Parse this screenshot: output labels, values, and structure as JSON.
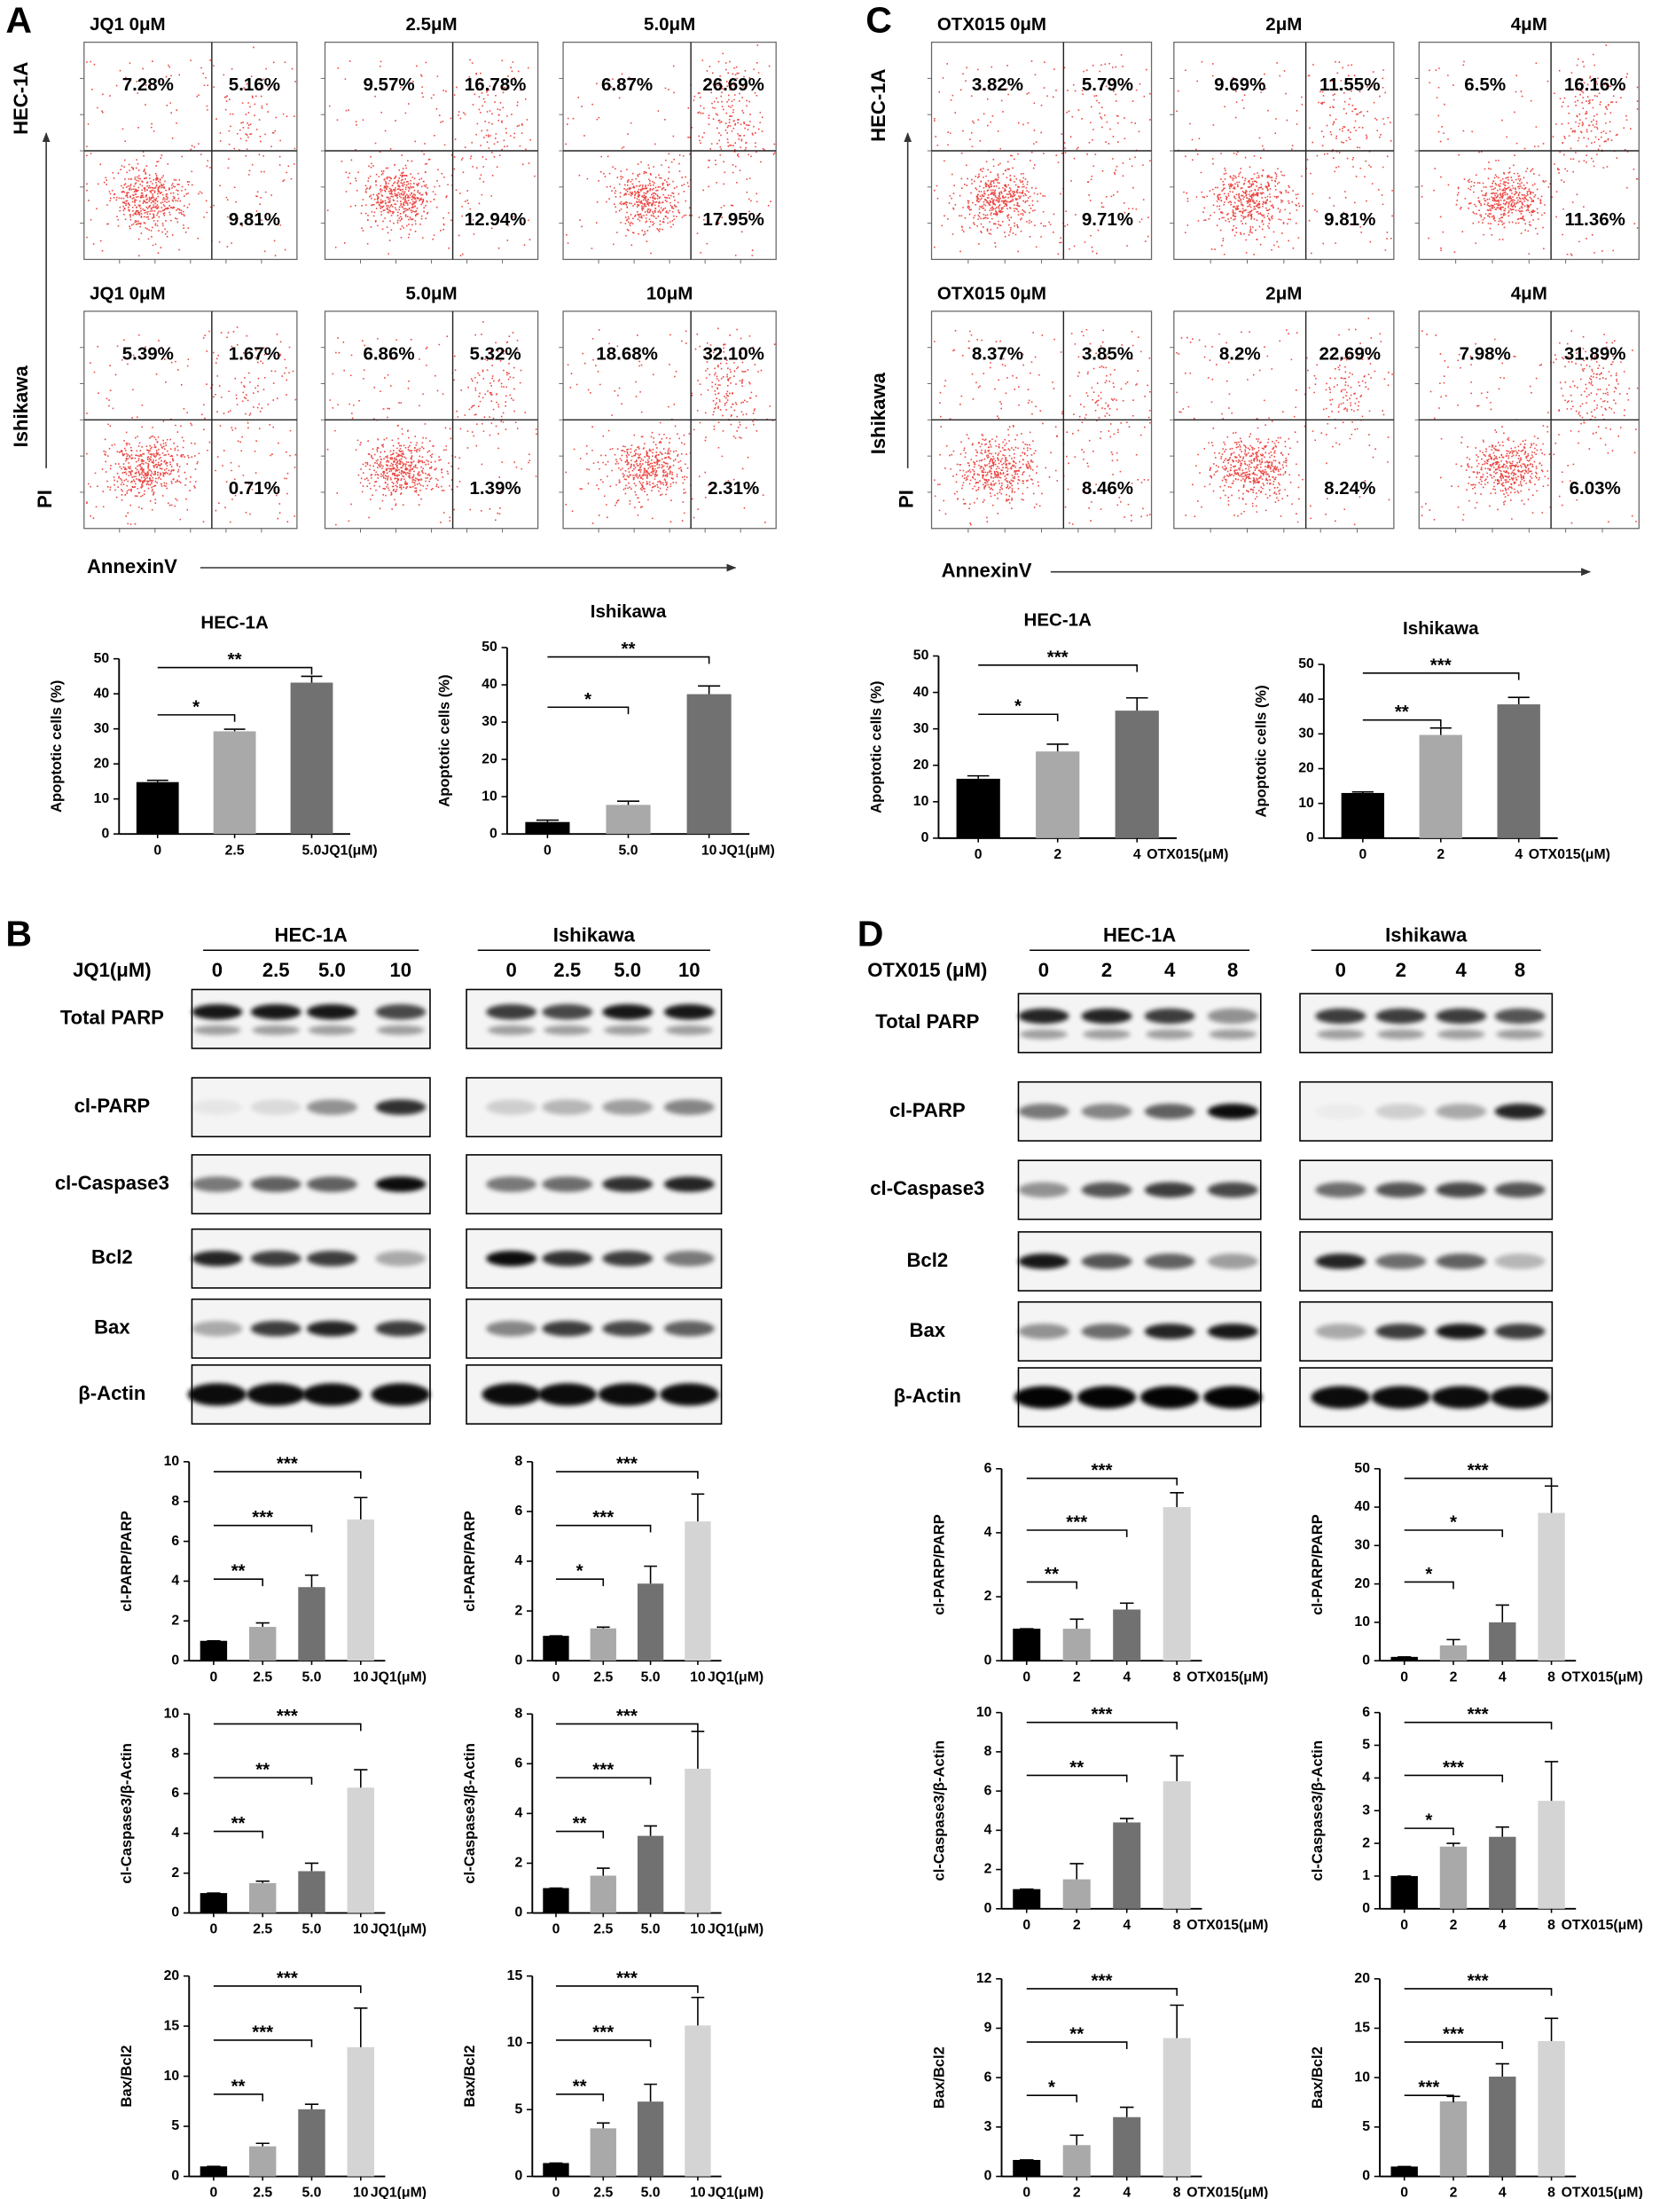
{
  "panel_labels": [
    "A",
    "B",
    "C",
    "D"
  ],
  "flow": [
    {
      "row_labels": [
        "HEC-1A",
        "Ishikawa"
      ],
      "y_label": "PI",
      "x_label": "AnnexinV",
      "plots": [
        [
          {
            "title": "JQ1 0μM",
            "quadrants": [
              "7.28%",
              "5.16%",
              "9.81%"
            ]
          },
          {
            "title": "2.5μM",
            "quadrants": [
              "9.57%",
              "16.78%",
              "12.94%"
            ]
          },
          {
            "title": "5.0μM",
            "quadrants": [
              "6.87%",
              "26.69%",
              "17.95%"
            ]
          }
        ],
        [
          {
            "title": "JQ1 0μM",
            "quadrants": [
              "5.39%",
              "1.67%",
              "0.71%"
            ]
          },
          {
            "title": "5.0μM",
            "quadrants": [
              "6.86%",
              "5.32%",
              "1.39%"
            ]
          },
          {
            "title": "10μM",
            "quadrants": [
              "18.68%",
              "32.10%",
              "2.31%"
            ]
          }
        ]
      ]
    },
    {
      "row_labels": [
        "HEC-1A",
        "Ishikawa"
      ],
      "y_label": "PI",
      "x_label": "AnnexinV",
      "plots": [
        [
          {
            "title": "OTX015 0μM",
            "quadrants": [
              "3.82%",
              "5.79%",
              "9.71%"
            ]
          },
          {
            "title": "2μM",
            "quadrants": [
              "9.69%",
              "11.55%",
              "9.81%"
            ]
          },
          {
            "title": "4μM",
            "quadrants": [
              "6.5%",
              "16.16%",
              "11.36%"
            ]
          }
        ],
        [
          {
            "title": "OTX015 0μM",
            "quadrants": [
              "8.37%",
              "3.85%",
              "8.46%"
            ]
          },
          {
            "title": "2μM",
            "quadrants": [
              "8.2%",
              "22.69%",
              "8.24%"
            ]
          },
          {
            "title": "4μM",
            "quadrants": [
              "7.98%",
              "31.89%",
              "6.03%"
            ]
          }
        ]
      ]
    }
  ],
  "chart_data": [
    {
      "type": "bar",
      "title": "HEC-1A",
      "ylabel": "Apoptotic cells (%)",
      "xlabel": "JQ1(μM)",
      "categories": [
        "0",
        "2.5",
        "5.0"
      ],
      "values": [
        14.8,
        29.3,
        43.2
      ],
      "errors": [
        0.5,
        0.6,
        1.8
      ],
      "colors": [
        "#000000",
        "#a9a9a9",
        "#717171"
      ],
      "ylim": [
        0,
        50
      ],
      "yticks": [
        0,
        10,
        20,
        30,
        40,
        50
      ],
      "annotations": [
        {
          "from": 0,
          "to": 1,
          "label": "*"
        },
        {
          "from": 0,
          "to": 2,
          "label": "**"
        }
      ]
    },
    {
      "type": "bar",
      "title": "Ishikawa",
      "ylabel": "Apoptotic cells (%)",
      "xlabel": "JQ1(μM)",
      "categories": [
        "0",
        "5.0",
        "10"
      ],
      "values": [
        3.2,
        7.8,
        37.5
      ],
      "errors": [
        0.5,
        1,
        2.2
      ],
      "colors": [
        "#000000",
        "#a9a9a9",
        "#717171"
      ],
      "ylim": [
        0,
        50
      ],
      "yticks": [
        0,
        10,
        20,
        30,
        40,
        50
      ],
      "annotations": [
        {
          "from": 0,
          "to": 1,
          "label": "*"
        },
        {
          "from": 0,
          "to": 2,
          "label": "**"
        }
      ]
    },
    {
      "type": "bar",
      "title": "HEC-1A",
      "ylabel": "Apoptotic cells (%)",
      "xlabel": "OTX015(μM)",
      "categories": [
        "0",
        "2",
        "4"
      ],
      "values": [
        16.3,
        23.8,
        35
      ],
      "errors": [
        0.8,
        2,
        3.5
      ],
      "colors": [
        "#000000",
        "#a9a9a9",
        "#717171"
      ],
      "ylim": [
        0,
        50
      ],
      "yticks": [
        0,
        10,
        20,
        30,
        40,
        50
      ],
      "annotations": [
        {
          "from": 0,
          "to": 1,
          "label": "*"
        },
        {
          "from": 0,
          "to": 2,
          "label": "***"
        }
      ]
    },
    {
      "type": "bar",
      "title": "Ishikawa",
      "ylabel": "Apoptotic cells (%)",
      "xlabel": "OTX015(μM)",
      "categories": [
        "0",
        "2",
        "4"
      ],
      "values": [
        13,
        29.7,
        38.5
      ],
      "errors": [
        0.3,
        2,
        2
      ],
      "colors": [
        "#000000",
        "#a9a9a9",
        "#717171"
      ],
      "ylim": [
        0,
        50
      ],
      "yticks": [
        0,
        10,
        20,
        30,
        40,
        50
      ],
      "annotations": [
        {
          "from": 0,
          "to": 1,
          "label": "**"
        },
        {
          "from": 0,
          "to": 2,
          "label": "***"
        }
      ]
    },
    {
      "type": "bar",
      "ylabel": "cl-PARP/PARP",
      "xlabel": "JQ1(μM)",
      "categories": [
        "0",
        "2.5",
        "5.0",
        "10"
      ],
      "values": [
        1,
        1.7,
        3.7,
        7.1
      ],
      "errors": [
        0,
        0.2,
        0.6,
        1.1
      ],
      "colors": [
        "#000000",
        "#a9a9a9",
        "#717171",
        "#d4d4d4"
      ],
      "ylim": [
        0,
        10
      ],
      "yticks": [
        0,
        2,
        4,
        6,
        8,
        10
      ],
      "annotations": [
        {
          "from": 0,
          "to": 1,
          "label": "**"
        },
        {
          "from": 0,
          "to": 2,
          "label": "***"
        },
        {
          "from": 0,
          "to": 3,
          "label": "***"
        }
      ]
    },
    {
      "type": "bar",
      "ylabel": "cl-PARP/PARP",
      "xlabel": "JQ1(μM)",
      "categories": [
        "0",
        "2.5",
        "5.0",
        "10"
      ],
      "values": [
        1,
        1.3,
        3.1,
        5.6
      ],
      "errors": [
        0,
        0.05,
        0.7,
        1.1
      ],
      "colors": [
        "#000000",
        "#a9a9a9",
        "#717171",
        "#d4d4d4"
      ],
      "ylim": [
        0,
        8
      ],
      "yticks": [
        0,
        2,
        4,
        6,
        8
      ],
      "annotations": [
        {
          "from": 0,
          "to": 1,
          "label": "*"
        },
        {
          "from": 0,
          "to": 2,
          "label": "***"
        },
        {
          "from": 0,
          "to": 3,
          "label": "***"
        }
      ]
    },
    {
      "type": "bar",
      "ylabel": "cl-PARP/PARP",
      "xlabel": "OTX015(μM)",
      "categories": [
        "0",
        "2",
        "4",
        "8"
      ],
      "values": [
        1,
        1,
        1.6,
        4.8
      ],
      "errors": [
        0,
        0.3,
        0.2,
        0.45
      ],
      "colors": [
        "#000000",
        "#a9a9a9",
        "#717171",
        "#d4d4d4"
      ],
      "ylim": [
        0,
        6
      ],
      "yticks": [
        0,
        2,
        4,
        6
      ],
      "annotations": [
        {
          "from": 0,
          "to": 1,
          "label": "**"
        },
        {
          "from": 0,
          "to": 2,
          "label": "***"
        },
        {
          "from": 0,
          "to": 3,
          "label": "***"
        }
      ]
    },
    {
      "type": "bar",
      "ylabel": "cl-PARP/PARP",
      "xlabel": "OTX015(μM)",
      "categories": [
        "0",
        "2",
        "4",
        "8"
      ],
      "values": [
        1,
        4,
        10,
        38.5
      ],
      "errors": [
        0,
        1.5,
        4.5,
        7
      ],
      "colors": [
        "#000000",
        "#a9a9a9",
        "#717171",
        "#d4d4d4"
      ],
      "ylim": [
        0,
        50
      ],
      "yticks": [
        0,
        10,
        20,
        30,
        40,
        50
      ],
      "annotations": [
        {
          "from": 0,
          "to": 1,
          "label": "*"
        },
        {
          "from": 0,
          "to": 2,
          "label": "*"
        },
        {
          "from": 0,
          "to": 3,
          "label": "***"
        }
      ]
    },
    {
      "type": "bar",
      "ylabel": "cl-Caspase3/β-Actin",
      "xlabel": "JQ1(μM)",
      "categories": [
        "0",
        "2.5",
        "5.0",
        "10"
      ],
      "values": [
        1,
        1.5,
        2.1,
        6.3
      ],
      "errors": [
        0,
        0.1,
        0.4,
        0.9
      ],
      "colors": [
        "#000000",
        "#a9a9a9",
        "#717171",
        "#d4d4d4"
      ],
      "ylim": [
        0,
        10
      ],
      "yticks": [
        0,
        2,
        4,
        6,
        8,
        10
      ],
      "annotations": [
        {
          "from": 0,
          "to": 1,
          "label": "**"
        },
        {
          "from": 0,
          "to": 2,
          "label": "**"
        },
        {
          "from": 0,
          "to": 3,
          "label": "***"
        }
      ]
    },
    {
      "type": "bar",
      "ylabel": "cl-Caspase3/β-Actin",
      "xlabel": "JQ1(μM)",
      "categories": [
        "0",
        "2.5",
        "5.0",
        "10"
      ],
      "values": [
        1,
        1.5,
        3.1,
        5.8
      ],
      "errors": [
        0,
        0.3,
        0.4,
        1.5
      ],
      "colors": [
        "#000000",
        "#a9a9a9",
        "#717171",
        "#d4d4d4"
      ],
      "ylim": [
        0,
        8
      ],
      "yticks": [
        0,
        2,
        4,
        6,
        8
      ],
      "annotations": [
        {
          "from": 0,
          "to": 1,
          "label": "**"
        },
        {
          "from": 0,
          "to": 2,
          "label": "***"
        },
        {
          "from": 0,
          "to": 3,
          "label": "***"
        }
      ]
    },
    {
      "type": "bar",
      "ylabel": "cl-Caspase3/β-Actin",
      "xlabel": "OTX015(μM)",
      "categories": [
        "0",
        "2",
        "4",
        "8"
      ],
      "values": [
        1,
        1.5,
        4.4,
        6.5
      ],
      "errors": [
        0,
        0.8,
        0.2,
        1.3
      ],
      "colors": [
        "#000000",
        "#a9a9a9",
        "#717171",
        "#d4d4d4"
      ],
      "ylim": [
        0,
        10
      ],
      "yticks": [
        0,
        2,
        4,
        6,
        8,
        10
      ],
      "annotations": [
        {
          "from": 0,
          "to": 2,
          "label": "**"
        },
        {
          "from": 0,
          "to": 3,
          "label": "***"
        }
      ]
    },
    {
      "type": "bar",
      "ylabel": "cl-Caspase3/β-Actin",
      "xlabel": "OTX015(μM)",
      "categories": [
        "0",
        "2",
        "4",
        "8"
      ],
      "values": [
        1,
        1.9,
        2.2,
        3.3
      ],
      "errors": [
        0,
        0.1,
        0.3,
        1.2
      ],
      "colors": [
        "#000000",
        "#a9a9a9",
        "#717171",
        "#d4d4d4"
      ],
      "ylim": [
        0,
        6
      ],
      "yticks": [
        0,
        1,
        2,
        3,
        4,
        5,
        6
      ],
      "annotations": [
        {
          "from": 0,
          "to": 1,
          "label": "*"
        },
        {
          "from": 0,
          "to": 2,
          "label": "***"
        },
        {
          "from": 0,
          "to": 3,
          "label": "***"
        }
      ]
    },
    {
      "type": "bar",
      "ylabel": "Bax/Bcl2",
      "xlabel": "JQ1(μM)",
      "categories": [
        "0",
        "2.5",
        "5.0",
        "10"
      ],
      "values": [
        1,
        3,
        6.7,
        12.9
      ],
      "errors": [
        0,
        0.3,
        0.5,
        3.9
      ],
      "colors": [
        "#000000",
        "#a9a9a9",
        "#717171",
        "#d4d4d4"
      ],
      "ylim": [
        0,
        20
      ],
      "yticks": [
        0,
        5,
        10,
        15,
        20
      ],
      "annotations": [
        {
          "from": 0,
          "to": 1,
          "label": "**"
        },
        {
          "from": 0,
          "to": 2,
          "label": "***"
        },
        {
          "from": 0,
          "to": 3,
          "label": "***"
        }
      ]
    },
    {
      "type": "bar",
      "ylabel": "Bax/Bcl2",
      "xlabel": "JQ1(μM)",
      "categories": [
        "0",
        "2.5",
        "5.0",
        "10"
      ],
      "values": [
        1,
        3.6,
        5.6,
        11.3
      ],
      "errors": [
        0,
        0.4,
        1.3,
        2.1
      ],
      "colors": [
        "#000000",
        "#a9a9a9",
        "#717171",
        "#d4d4d4"
      ],
      "ylim": [
        0,
        15
      ],
      "yticks": [
        0,
        5,
        10,
        15
      ],
      "annotations": [
        {
          "from": 0,
          "to": 1,
          "label": "**"
        },
        {
          "from": 0,
          "to": 2,
          "label": "***"
        },
        {
          "from": 0,
          "to": 3,
          "label": "***"
        }
      ]
    },
    {
      "type": "bar",
      "ylabel": "Bax/Bcl2",
      "xlabel": "OTX015(μM)",
      "categories": [
        "0",
        "2",
        "4",
        "8"
      ],
      "values": [
        1,
        1.9,
        3.6,
        8.4
      ],
      "errors": [
        0,
        0.6,
        0.6,
        2
      ],
      "colors": [
        "#000000",
        "#a9a9a9",
        "#717171",
        "#d4d4d4"
      ],
      "ylim": [
        0,
        12
      ],
      "yticks": [
        0,
        3,
        6,
        9,
        12
      ],
      "annotations": [
        {
          "from": 0,
          "to": 1,
          "label": "*"
        },
        {
          "from": 0,
          "to": 2,
          "label": "**"
        },
        {
          "from": 0,
          "to": 3,
          "label": "***"
        }
      ]
    },
    {
      "type": "bar",
      "ylabel": "Bax/Bcl2",
      "xlabel": "OTX015(μM)",
      "categories": [
        "0",
        "2",
        "4",
        "8"
      ],
      "values": [
        1,
        7.6,
        10.1,
        13.7
      ],
      "errors": [
        0,
        0.5,
        1.3,
        2.3
      ],
      "colors": [
        "#000000",
        "#a9a9a9",
        "#717171",
        "#d4d4d4"
      ],
      "ylim": [
        0,
        20
      ],
      "yticks": [
        0,
        5,
        10,
        15,
        20
      ],
      "annotations": [
        {
          "from": 0,
          "to": 1,
          "label": "***"
        },
        {
          "from": 0,
          "to": 2,
          "label": "***"
        },
        {
          "from": 0,
          "to": 3,
          "label": "***"
        }
      ]
    }
  ],
  "blots": [
    {
      "treatment": "JQ1(μM)",
      "groups": [
        {
          "name": "HEC-1A",
          "lanes": [
            "0",
            "2.5",
            "5.0",
            "10"
          ]
        },
        {
          "name": "Ishikawa",
          "lanes": [
            "0",
            "2.5",
            "5.0",
            "10"
          ]
        }
      ],
      "proteins": [
        "Total PARP",
        "cl-PARP",
        "cl-Caspase3",
        "Bcl2",
        "Bax",
        "β-Actin"
      ]
    },
    {
      "treatment": "OTX015 (μM)",
      "groups": [
        {
          "name": "HEC-1A",
          "lanes": [
            "0",
            "2",
            "4",
            "8"
          ]
        },
        {
          "name": "Ishikawa",
          "lanes": [
            "0",
            "2",
            "4",
            "8"
          ]
        }
      ],
      "proteins": [
        "Total PARP",
        "cl-PARP",
        "cl-Caspase3",
        "Bcl2",
        "Bax",
        "β-Actin"
      ]
    }
  ]
}
